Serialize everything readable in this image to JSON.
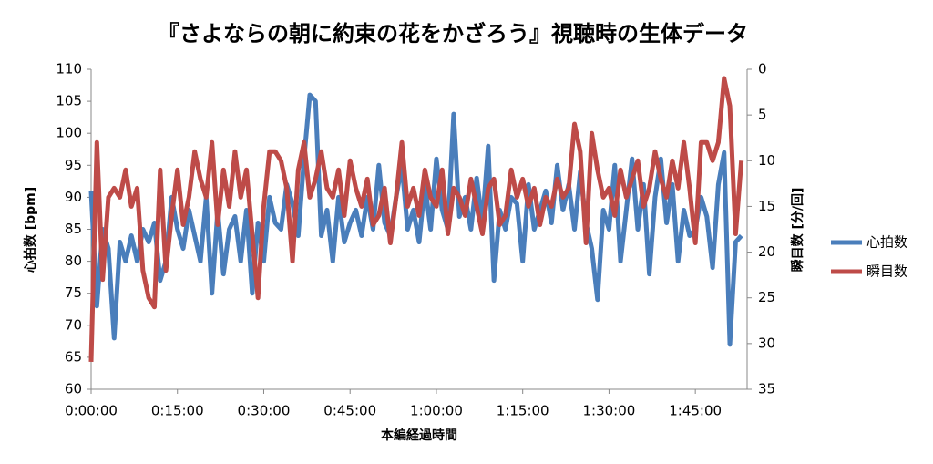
{
  "chart_data": {
    "type": "line",
    "title": "『さよならの朝に約束の花をかざろう』視聴時の生体データ",
    "x_label": "本編経過時間",
    "y_label": "心拍数 [bpm]",
    "y2_label": "瞬目数 [分/回]",
    "x": [
      0,
      1,
      2,
      3,
      4,
      5,
      6,
      7,
      8,
      9,
      10,
      11,
      12,
      13,
      14,
      15,
      16,
      17,
      18,
      19,
      20,
      21,
      22,
      23,
      24,
      25,
      26,
      27,
      28,
      29,
      30,
      31,
      32,
      33,
      34,
      35,
      36,
      37,
      38,
      39,
      40,
      41,
      42,
      43,
      44,
      45,
      46,
      47,
      48,
      49,
      50,
      51,
      52,
      53,
      54,
      55,
      56,
      57,
      58,
      59,
      60,
      61,
      62,
      63,
      64,
      65,
      66,
      67,
      68,
      69,
      70,
      71,
      72,
      73,
      74,
      75,
      76,
      77,
      78,
      79,
      80,
      81,
      82,
      83,
      84,
      85,
      86,
      87,
      88,
      89,
      90,
      91,
      92,
      93,
      94,
      95,
      96,
      97,
      98,
      99,
      100,
      101,
      102,
      103,
      104,
      105,
      106,
      107,
      108,
      109,
      110,
      111,
      112,
      113
    ],
    "series": [
      {
        "name": "心拍数",
        "color": "#4a7ebb",
        "values": [
          91,
          73,
          85,
          82,
          68,
          83,
          80,
          84,
          80,
          85,
          83,
          86,
          77,
          80,
          90,
          85,
          82,
          88,
          84,
          80,
          90,
          75,
          88,
          78,
          85,
          87,
          80,
          88,
          75,
          86,
          80,
          90,
          86,
          85,
          92,
          89,
          84,
          96,
          106,
          105,
          84,
          88,
          80,
          90,
          83,
          86,
          88,
          84,
          90,
          85,
          95,
          86,
          84,
          90,
          95,
          85,
          88,
          83,
          92,
          85,
          96,
          88,
          85,
          103,
          87,
          90,
          85,
          93,
          86,
          98,
          77,
          88,
          85,
          90,
          89,
          80,
          92,
          85,
          88,
          91,
          86,
          95,
          88,
          92,
          85,
          94,
          86,
          82,
          74,
          88,
          85,
          95,
          80,
          88,
          96,
          85,
          92,
          78,
          90,
          96,
          86,
          92,
          80,
          88,
          84,
          85,
          90,
          87,
          79,
          92,
          97,
          67,
          83,
          84
        ]
      },
      {
        "name": "瞬目数",
        "color": "#be4b48",
        "axis": "y2",
        "values": [
          32,
          8,
          23,
          14,
          13,
          14,
          11,
          15,
          13,
          22,
          25,
          26,
          11,
          22,
          16,
          11,
          17,
          14,
          9,
          12,
          14,
          8,
          17,
          11,
          15,
          9,
          14,
          11,
          18,
          25,
          15,
          9,
          9,
          10,
          13,
          21,
          11,
          8,
          14,
          12,
          9,
          13,
          14,
          11,
          16,
          10,
          13,
          15,
          12,
          17,
          16,
          13,
          19,
          14,
          8,
          15,
          13,
          16,
          11,
          14,
          15,
          11,
          18,
          13,
          14,
          16,
          12,
          15,
          18,
          13,
          12,
          17,
          16,
          11,
          14,
          12,
          15,
          13,
          17,
          14,
          15,
          12,
          14,
          13,
          6,
          9,
          19,
          7,
          11,
          14,
          13,
          16,
          11,
          14,
          12,
          10,
          15,
          13,
          9,
          12,
          14,
          10,
          13,
          8,
          13,
          19,
          8,
          8,
          10,
          8,
          1,
          4,
          18,
          10
        ]
      }
    ],
    "xlim": [
      0,
      114
    ],
    "xticks": [
      {
        "value": 0,
        "label": "0:00:00"
      },
      {
        "value": 15,
        "label": "0:15:00"
      },
      {
        "value": 30,
        "label": "0:30:00"
      },
      {
        "value": 45,
        "label": "0:45:00"
      },
      {
        "value": 60,
        "label": "1:00:00"
      },
      {
        "value": 75,
        "label": "1:15:00"
      },
      {
        "value": 90,
        "label": "1:30:00"
      },
      {
        "value": 105,
        "label": "1:45:00"
      }
    ],
    "ylim": [
      60,
      110
    ],
    "yticks": [
      60,
      65,
      70,
      75,
      80,
      85,
      90,
      95,
      100,
      105,
      110
    ],
    "y2lim": [
      35,
      0
    ],
    "y2ticks": [
      0,
      5,
      10,
      15,
      20,
      25,
      30,
      35
    ],
    "grid": false,
    "legend": "right"
  }
}
